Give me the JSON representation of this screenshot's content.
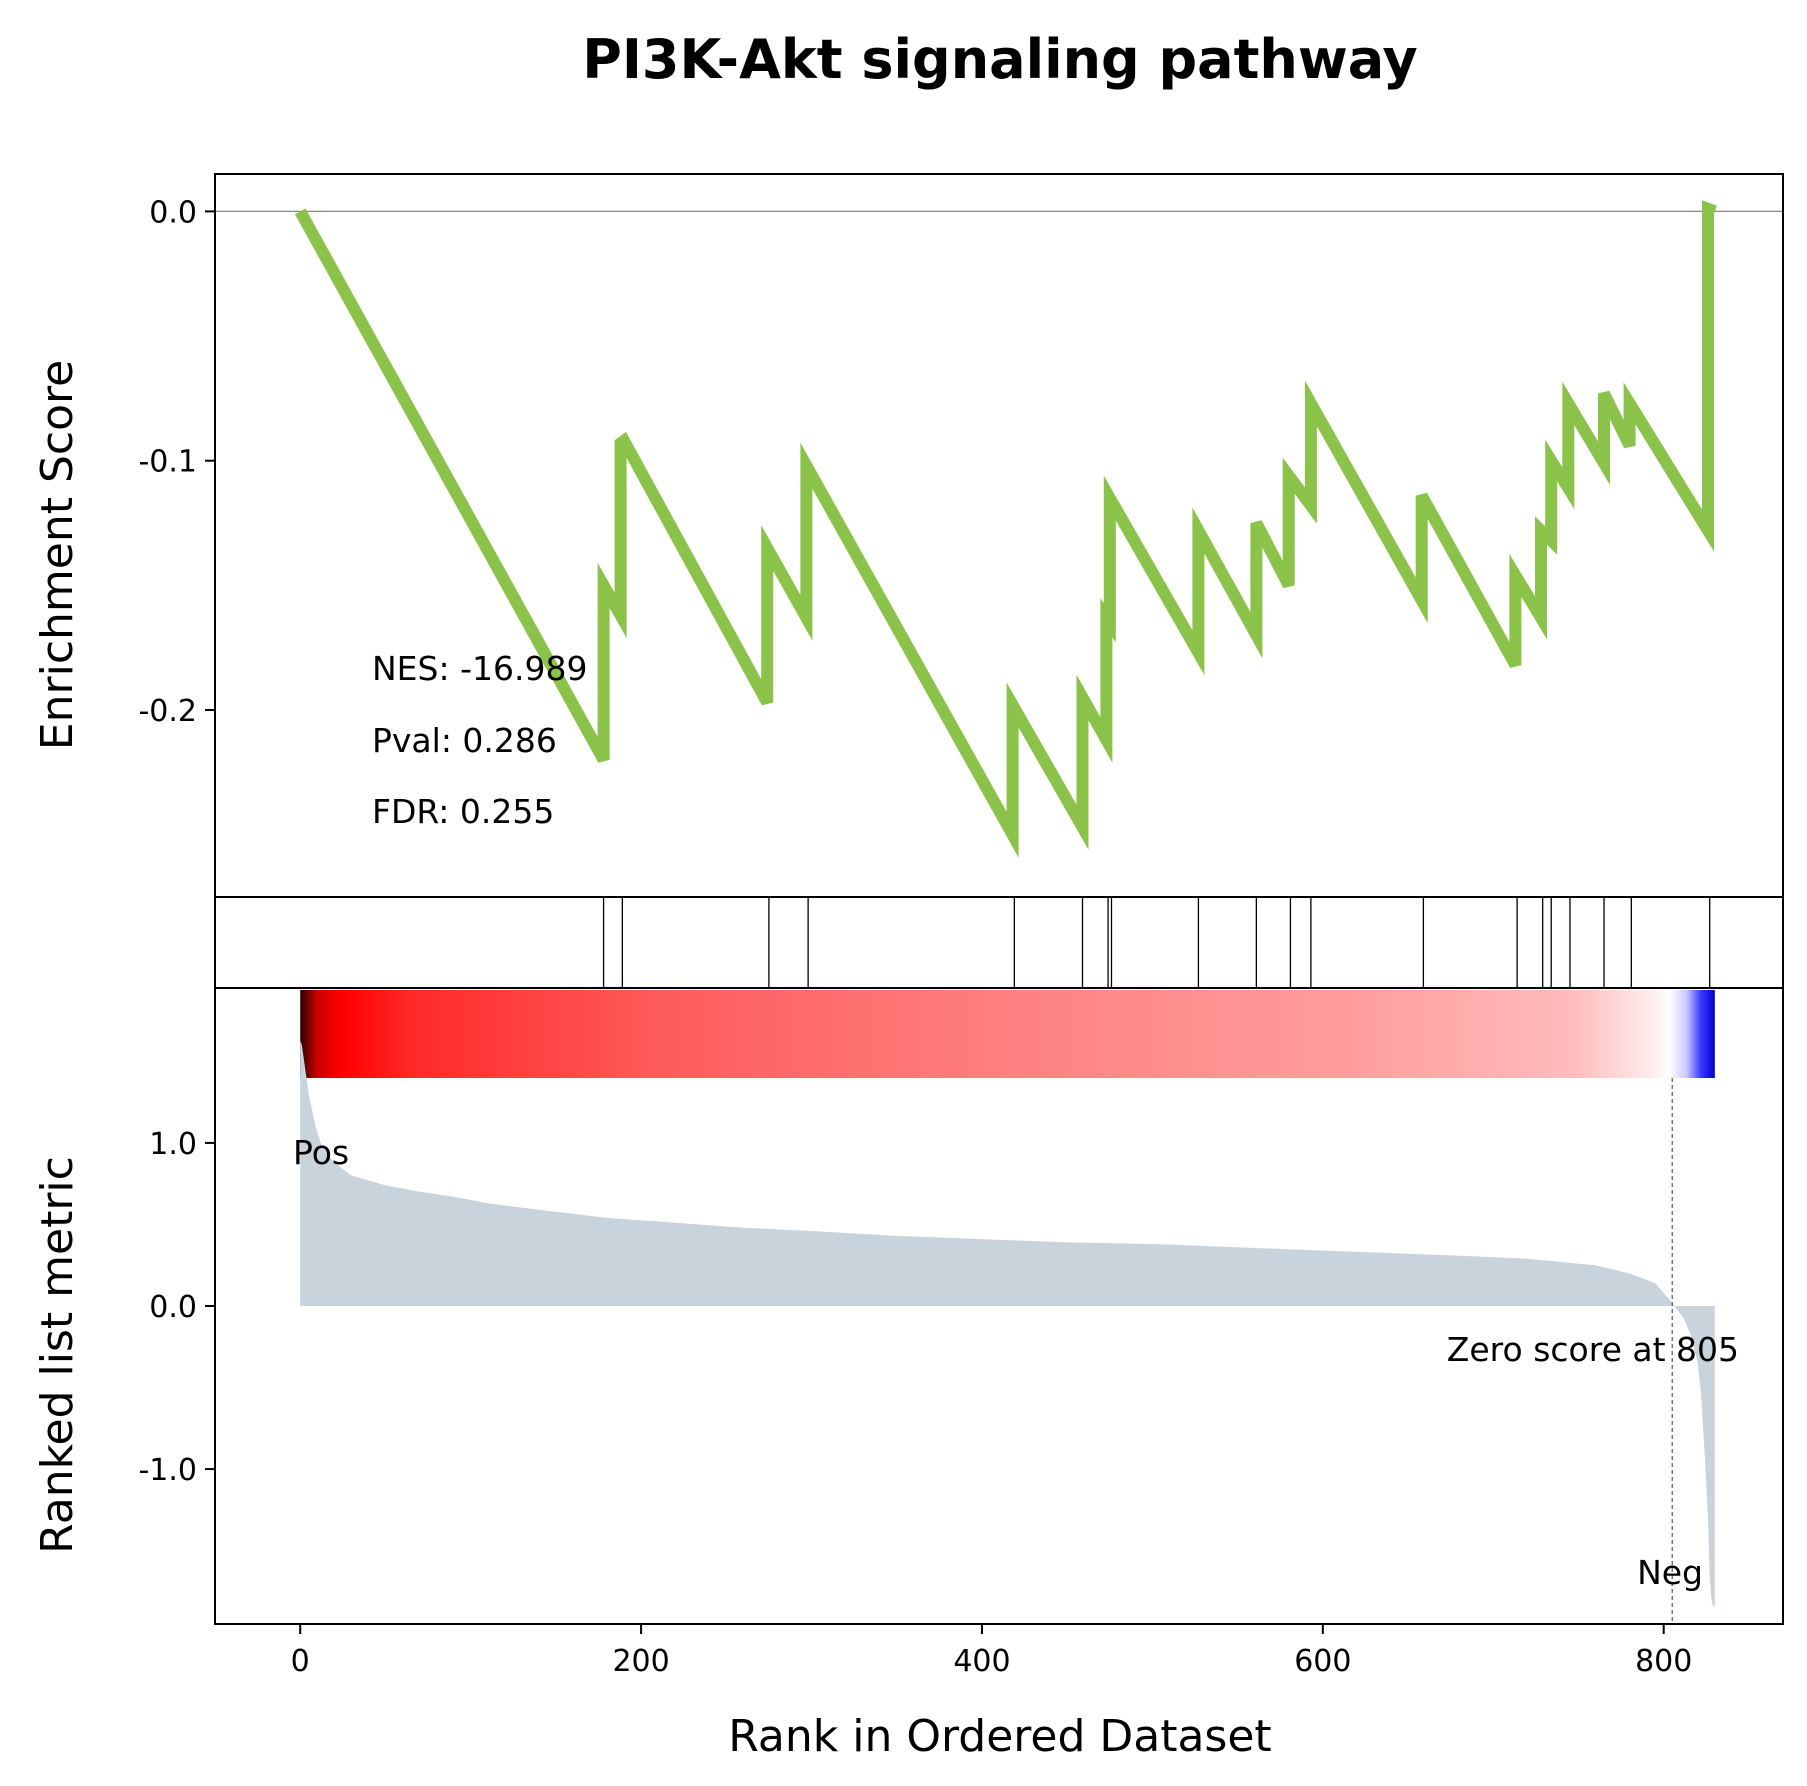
{
  "chart_data": {
    "type": "line",
    "title": "PI3K-Akt signaling pathway",
    "xlabel": "Rank in Ordered Dataset",
    "xlim": [
      -50,
      870
    ],
    "x_ticks": [
      "0",
      "200",
      "400",
      "600",
      "800"
    ],
    "x_tick_values": [
      0,
      200,
      400,
      600,
      800
    ],
    "enrichment": {
      "ylabel": "Enrichment Score",
      "ylim": [
        -0.275,
        0.015
      ],
      "y_ticks": [
        "0.0",
        "-0.1",
        "-0.2"
      ],
      "y_tick_values": [
        0.0,
        -0.1,
        -0.2
      ],
      "zero_line": true,
      "line_color": "#8bc34a",
      "x": [
        0,
        178,
        178,
        188,
        188,
        190,
        274,
        274,
        297,
        297,
        418,
        418,
        459,
        459,
        473,
        473,
        475,
        475,
        527,
        527,
        561,
        561,
        580,
        580,
        593,
        593,
        658,
        658,
        713,
        713,
        728,
        728,
        734,
        734,
        744,
        744,
        765,
        765,
        780,
        780,
        826,
        826,
        830
      ],
      "y": [
        0.0,
        -0.22,
        -0.15,
        -0.162,
        -0.093,
        -0.092,
        -0.197,
        -0.135,
        -0.163,
        -0.102,
        -0.25,
        -0.198,
        -0.247,
        -0.195,
        -0.212,
        -0.163,
        -0.165,
        -0.115,
        -0.177,
        -0.128,
        -0.17,
        -0.125,
        -0.15,
        -0.106,
        -0.118,
        -0.077,
        -0.156,
        -0.114,
        -0.182,
        -0.146,
        -0.163,
        -0.128,
        -0.132,
        -0.1,
        -0.111,
        -0.077,
        -0.101,
        -0.073,
        -0.094,
        -0.077,
        -0.128,
        0.001,
        0.0
      ]
    },
    "hits": {
      "positions": [
        178,
        189,
        275,
        298,
        419,
        459,
        474,
        476,
        527,
        561,
        581,
        593,
        659,
        714,
        729,
        734,
        745,
        765,
        781,
        827
      ]
    },
    "ranked_metric": {
      "ylabel": "Ranked list metric",
      "ylim": [
        -1.95,
        1.95
      ],
      "y_ticks": [
        "1.0",
        "0.0",
        "-1.0"
      ],
      "y_tick_values": [
        1.0,
        0.0,
        -1.0
      ],
      "fill_color": "#c8d3dc",
      "x": [
        0,
        1,
        3,
        5,
        7,
        9,
        12,
        16,
        20,
        25,
        30,
        40,
        50,
        70,
        90,
        110,
        140,
        180,
        220,
        260,
        300,
        350,
        400,
        450,
        500,
        550,
        600,
        650,
        700,
        720,
        740,
        760,
        780,
        795,
        805,
        812,
        816,
        820,
        822,
        824,
        826,
        827,
        828,
        829,
        830
      ],
      "y": [
        1.63,
        1.6,
        1.45,
        1.3,
        1.2,
        1.1,
        1.0,
        0.93,
        0.88,
        0.84,
        0.8,
        0.77,
        0.74,
        0.7,
        0.67,
        0.63,
        0.59,
        0.54,
        0.51,
        0.48,
        0.46,
        0.43,
        0.41,
        0.39,
        0.38,
        0.36,
        0.34,
        0.32,
        0.3,
        0.29,
        0.27,
        0.25,
        0.2,
        0.14,
        0.02,
        -0.08,
        -0.18,
        -0.35,
        -0.55,
        -0.9,
        -1.3,
        -1.65,
        -1.8,
        -1.84,
        -1.84
      ],
      "zero_label": "Zero score at 805",
      "zero_x": 805,
      "pos_label": "Pos",
      "neg_label": "Neg",
      "pos_color": "#ff0000",
      "neg_color": "#0000ff"
    },
    "stats": {
      "nes": "NES: -16.989",
      "pval": "Pval: 0.286",
      "fdr": "FDR: 0.255"
    }
  }
}
